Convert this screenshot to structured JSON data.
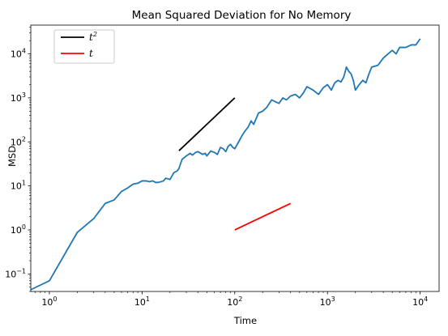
{
  "chart_data": {
    "type": "line",
    "title": "Mean Squared Deviation for No Memory",
    "xlabel": "Time",
    "ylabel": "MSD",
    "xscale": "log",
    "yscale": "log",
    "xlim": [
      0.63,
      16000
    ],
    "ylim": [
      0.04,
      45000
    ],
    "grid": false,
    "legend_position": "top-left",
    "x_tick_labels": [
      {
        "value": 1,
        "base": "10",
        "exp": "0"
      },
      {
        "value": 10,
        "base": "10",
        "exp": "1"
      },
      {
        "value": 100,
        "base": "10",
        "exp": "2"
      },
      {
        "value": 1000,
        "base": "10",
        "exp": "3"
      },
      {
        "value": 10000,
        "base": "10",
        "exp": "4"
      }
    ],
    "y_tick_labels": [
      {
        "value": 0.1,
        "base": "10",
        "exp": "−1"
      },
      {
        "value": 1,
        "base": "10",
        "exp": "0"
      },
      {
        "value": 10,
        "base": "10",
        "exp": "1"
      },
      {
        "value": 100,
        "base": "10",
        "exp": "2"
      },
      {
        "value": 1000,
        "base": "10",
        "exp": "3"
      },
      {
        "value": 10000,
        "base": "10",
        "exp": "4"
      }
    ],
    "series": [
      {
        "legend_label": "t",
        "legend_sup": "2",
        "color": "#000000",
        "x": [
          25,
          100
        ],
        "y": [
          63,
          1000
        ]
      },
      {
        "legend_label": "t",
        "legend_sup": "",
        "color": "#ff0000",
        "x": [
          100,
          400
        ],
        "y": [
          1,
          4
        ]
      },
      {
        "color": "#1f77b4",
        "x": [
          0.63,
          1,
          2,
          3,
          4,
          5,
          6,
          7,
          8,
          9,
          10,
          11,
          12,
          13,
          14,
          15,
          17,
          18,
          20,
          22,
          24,
          25,
          27,
          30,
          33,
          35,
          38,
          40,
          45,
          48,
          50,
          55,
          60,
          65,
          70,
          75,
          80,
          85,
          90,
          95,
          100,
          110,
          120,
          130,
          140,
          150,
          160,
          180,
          200,
          220,
          250,
          280,
          300,
          330,
          360,
          400,
          450,
          500,
          550,
          600,
          700,
          800,
          900,
          1000,
          1100,
          1200,
          1300,
          1400,
          1500,
          1600,
          1700,
          1800,
          1900,
          2000,
          2200,
          2400,
          2600,
          2800,
          3000,
          3500,
          4000,
          4500,
          5000,
          5500,
          6000,
          7000,
          8000,
          9000,
          10000
        ],
        "y": [
          0.044,
          0.07,
          0.88,
          1.8,
          4.0,
          4.8,
          7.5,
          9.0,
          11.0,
          11.5,
          13.0,
          13.0,
          12.5,
          13.0,
          12.0,
          12.0,
          13.0,
          15.0,
          14.0,
          20.0,
          22.0,
          25.0,
          40.0,
          48.0,
          55.0,
          50.0,
          58.0,
          60.0,
          52.0,
          55.0,
          48.0,
          62.0,
          58.0,
          52.0,
          75.0,
          70.0,
          60.0,
          80.0,
          88.0,
          75.0,
          70.0,
          100.0,
          140.0,
          180.0,
          220.0,
          300.0,
          250.0,
          450.0,
          500.0,
          600.0,
          900.0,
          800.0,
          750.0,
          1000.0,
          900.0,
          1100.0,
          1200.0,
          1000.0,
          1300.0,
          1800.0,
          1500.0,
          1200.0,
          1700.0,
          2000.0,
          1500.0,
          2200.0,
          2500.0,
          2300.0,
          3000.0,
          5000.0,
          4000.0,
          3500.0,
          2500.0,
          1500.0,
          2000.0,
          2500.0,
          2200.0,
          3500.0,
          5000.0,
          5500.0,
          8000.0,
          10000.0,
          12000.0,
          10000.0,
          14000.0,
          14000.0,
          16000.0,
          16000.0,
          22000.0
        ]
      }
    ]
  }
}
